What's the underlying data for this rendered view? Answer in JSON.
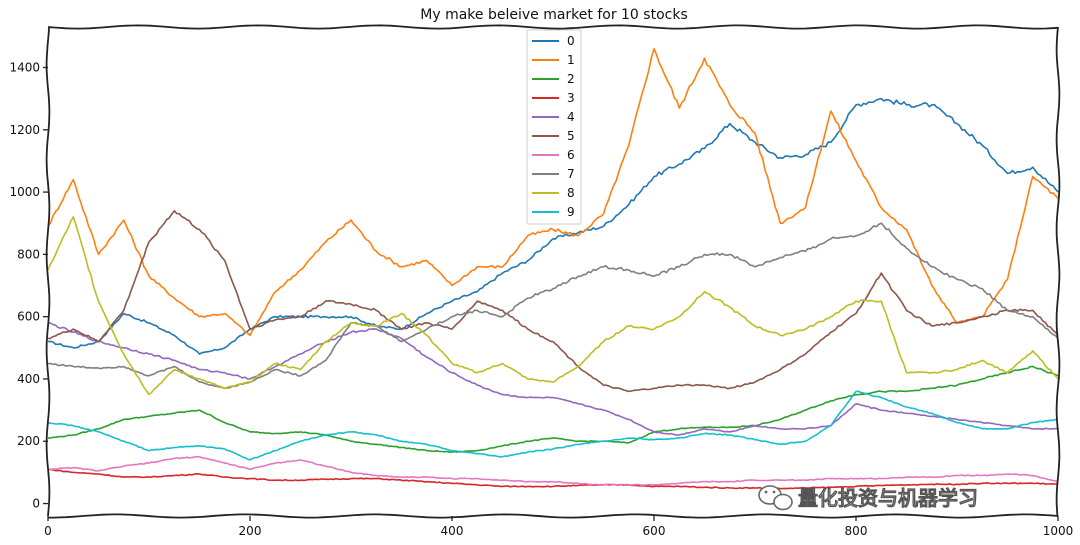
{
  "chart_data": {
    "type": "line",
    "title": "My make beleive market for 10 stocks",
    "xlabel": "",
    "ylabel": "",
    "xlim": [
      0,
      1000
    ],
    "ylim": [
      -40,
      1530
    ],
    "x_ticks": [
      0,
      200,
      400,
      600,
      800,
      1000
    ],
    "y_ticks": [
      0,
      200,
      400,
      600,
      800,
      1000,
      1200,
      1400
    ],
    "grid": false,
    "legend_position": "top-center",
    "x": [
      0,
      25,
      50,
      75,
      100,
      125,
      150,
      175,
      200,
      225,
      250,
      275,
      300,
      325,
      350,
      375,
      400,
      425,
      450,
      475,
      500,
      525,
      550,
      575,
      600,
      625,
      650,
      675,
      700,
      725,
      750,
      775,
      800,
      825,
      850,
      875,
      900,
      925,
      950,
      975,
      1000
    ],
    "series": [
      {
        "name": "0",
        "color": "#1f77b4",
        "values": [
          520,
          500,
          520,
          610,
          580,
          540,
          480,
          500,
          560,
          600,
          600,
          600,
          600,
          570,
          560,
          610,
          650,
          680,
          740,
          780,
          850,
          870,
          890,
          960,
          1050,
          1090,
          1140,
          1220,
          1160,
          1110,
          1120,
          1160,
          1280,
          1300,
          1280,
          1280,
          1220,
          1150,
          1060,
          1080,
          1000
        ]
      },
      {
        "name": "1",
        "color": "#ff7f0e",
        "values": [
          890,
          1040,
          800,
          910,
          730,
          660,
          600,
          610,
          540,
          680,
          750,
          840,
          910,
          810,
          760,
          780,
          700,
          760,
          760,
          860,
          880,
          860,
          930,
          1150,
          1460,
          1270,
          1430,
          1280,
          1190,
          900,
          950,
          1260,
          1100,
          950,
          880,
          700,
          580,
          600,
          720,
          1050,
          980
        ]
      },
      {
        "name": "2",
        "color": "#2ca02c",
        "values": [
          210,
          220,
          240,
          270,
          280,
          290,
          300,
          260,
          230,
          225,
          230,
          220,
          200,
          190,
          180,
          170,
          165,
          170,
          185,
          200,
          210,
          200,
          200,
          195,
          230,
          240,
          245,
          245,
          250,
          270,
          300,
          330,
          350,
          360,
          360,
          370,
          380,
          400,
          420,
          440,
          410
        ]
      },
      {
        "name": "3",
        "color": "#d62728",
        "values": [
          110,
          100,
          95,
          85,
          85,
          90,
          95,
          85,
          80,
          75,
          75,
          78,
          80,
          80,
          75,
          70,
          65,
          60,
          55,
          55,
          55,
          58,
          60,
          60,
          55,
          55,
          52,
          50,
          50,
          48,
          50,
          52,
          55,
          58,
          60,
          62,
          62,
          65,
          65,
          65,
          62
        ]
      },
      {
        "name": "4",
        "color": "#9467bd",
        "values": [
          580,
          550,
          520,
          500,
          480,
          460,
          430,
          420,
          400,
          440,
          480,
          520,
          550,
          560,
          530,
          470,
          420,
          380,
          350,
          340,
          340,
          320,
          300,
          270,
          230,
          220,
          240,
          230,
          250,
          240,
          240,
          250,
          320,
          300,
          290,
          280,
          270,
          260,
          250,
          240,
          240
        ]
      },
      {
        "name": "5",
        "color": "#8c564b",
        "values": [
          530,
          560,
          520,
          620,
          840,
          940,
          880,
          780,
          560,
          590,
          600,
          650,
          640,
          620,
          560,
          580,
          560,
          650,
          620,
          560,
          520,
          440,
          380,
          360,
          370,
          380,
          380,
          370,
          390,
          430,
          480,
          550,
          610,
          740,
          620,
          570,
          580,
          600,
          620,
          620,
          540
        ]
      },
      {
        "name": "6",
        "color": "#e377c2",
        "values": [
          110,
          115,
          105,
          120,
          130,
          145,
          150,
          130,
          110,
          130,
          140,
          120,
          100,
          90,
          85,
          85,
          80,
          80,
          75,
          70,
          70,
          65,
          60,
          60,
          60,
          65,
          70,
          70,
          75,
          75,
          75,
          80,
          80,
          80,
          85,
          85,
          90,
          90,
          95,
          90,
          70
        ]
      },
      {
        "name": "7",
        "color": "#7f7f7f",
        "values": [
          450,
          440,
          435,
          440,
          410,
          440,
          390,
          370,
          390,
          430,
          410,
          460,
          580,
          570,
          520,
          560,
          600,
          620,
          600,
          660,
          690,
          730,
          760,
          750,
          730,
          760,
          800,
          800,
          760,
          790,
          810,
          850,
          860,
          900,
          820,
          760,
          720,
          690,
          620,
          600,
          530
        ]
      },
      {
        "name": "8",
        "color": "#bcbd22",
        "values": [
          750,
          920,
          650,
          480,
          350,
          430,
          400,
          370,
          390,
          450,
          430,
          520,
          580,
          570,
          610,
          540,
          450,
          420,
          450,
          400,
          390,
          440,
          520,
          570,
          560,
          600,
          680,
          630,
          570,
          540,
          560,
          600,
          650,
          650,
          420,
          420,
          430,
          460,
          420,
          490,
          400
        ]
      },
      {
        "name": "9",
        "color": "#17becf",
        "values": [
          260,
          250,
          230,
          200,
          170,
          180,
          185,
          175,
          140,
          170,
          200,
          220,
          230,
          220,
          200,
          190,
          170,
          160,
          150,
          165,
          175,
          190,
          200,
          210,
          205,
          210,
          225,
          220,
          205,
          190,
          200,
          250,
          360,
          340,
          310,
          290,
          260,
          240,
          240,
          260,
          270
        ]
      }
    ]
  },
  "watermark": {
    "icon": "wechat-icon",
    "text": "量化投资与机器学习"
  }
}
